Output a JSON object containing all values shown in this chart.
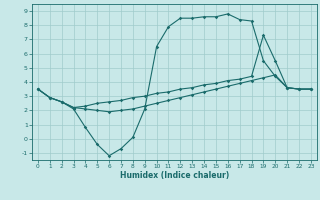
{
  "xlabel": "Humidex (Indice chaleur)",
  "bg_color": "#c8e8e8",
  "grid_color": "#a0cccc",
  "line_color": "#1a6b6b",
  "xlim": [
    -0.5,
    23.5
  ],
  "ylim": [
    -1.5,
    9.5
  ],
  "xticks": [
    0,
    1,
    2,
    3,
    4,
    5,
    6,
    7,
    8,
    9,
    10,
    11,
    12,
    13,
    14,
    15,
    16,
    17,
    18,
    19,
    20,
    21,
    22,
    23
  ],
  "yticks": [
    -1,
    0,
    1,
    2,
    3,
    4,
    5,
    6,
    7,
    8,
    9
  ],
  "line1_x": [
    0,
    1,
    2,
    3,
    4,
    5,
    6,
    7,
    8,
    9,
    10,
    11,
    12,
    13,
    14,
    15,
    16,
    17,
    18,
    19,
    20,
    21,
    22,
    23
  ],
  "line1_y": [
    3.5,
    2.9,
    2.6,
    2.1,
    0.8,
    -0.4,
    -1.2,
    -0.7,
    0.1,
    2.1,
    6.5,
    7.9,
    8.5,
    8.5,
    8.6,
    8.6,
    8.8,
    8.4,
    8.3,
    5.5,
    4.4,
    3.6,
    3.5,
    3.5
  ],
  "line2_x": [
    0,
    1,
    2,
    3,
    4,
    5,
    6,
    7,
    8,
    9,
    10,
    11,
    12,
    13,
    14,
    15,
    16,
    17,
    18,
    19,
    20,
    21,
    22,
    23
  ],
  "line2_y": [
    3.5,
    2.9,
    2.6,
    2.2,
    2.3,
    2.5,
    2.6,
    2.7,
    2.9,
    3.0,
    3.2,
    3.3,
    3.5,
    3.6,
    3.8,
    3.9,
    4.1,
    4.2,
    4.4,
    7.3,
    5.5,
    3.6,
    3.5,
    3.5
  ],
  "line3_x": [
    0,
    1,
    2,
    3,
    4,
    5,
    6,
    7,
    8,
    9,
    10,
    11,
    12,
    13,
    14,
    15,
    16,
    17,
    18,
    19,
    20,
    21,
    22,
    23
  ],
  "line3_y": [
    3.5,
    2.9,
    2.6,
    2.2,
    2.1,
    2.0,
    1.9,
    2.0,
    2.1,
    2.3,
    2.5,
    2.7,
    2.9,
    3.1,
    3.3,
    3.5,
    3.7,
    3.9,
    4.1,
    4.3,
    4.5,
    3.6,
    3.5,
    3.5
  ]
}
